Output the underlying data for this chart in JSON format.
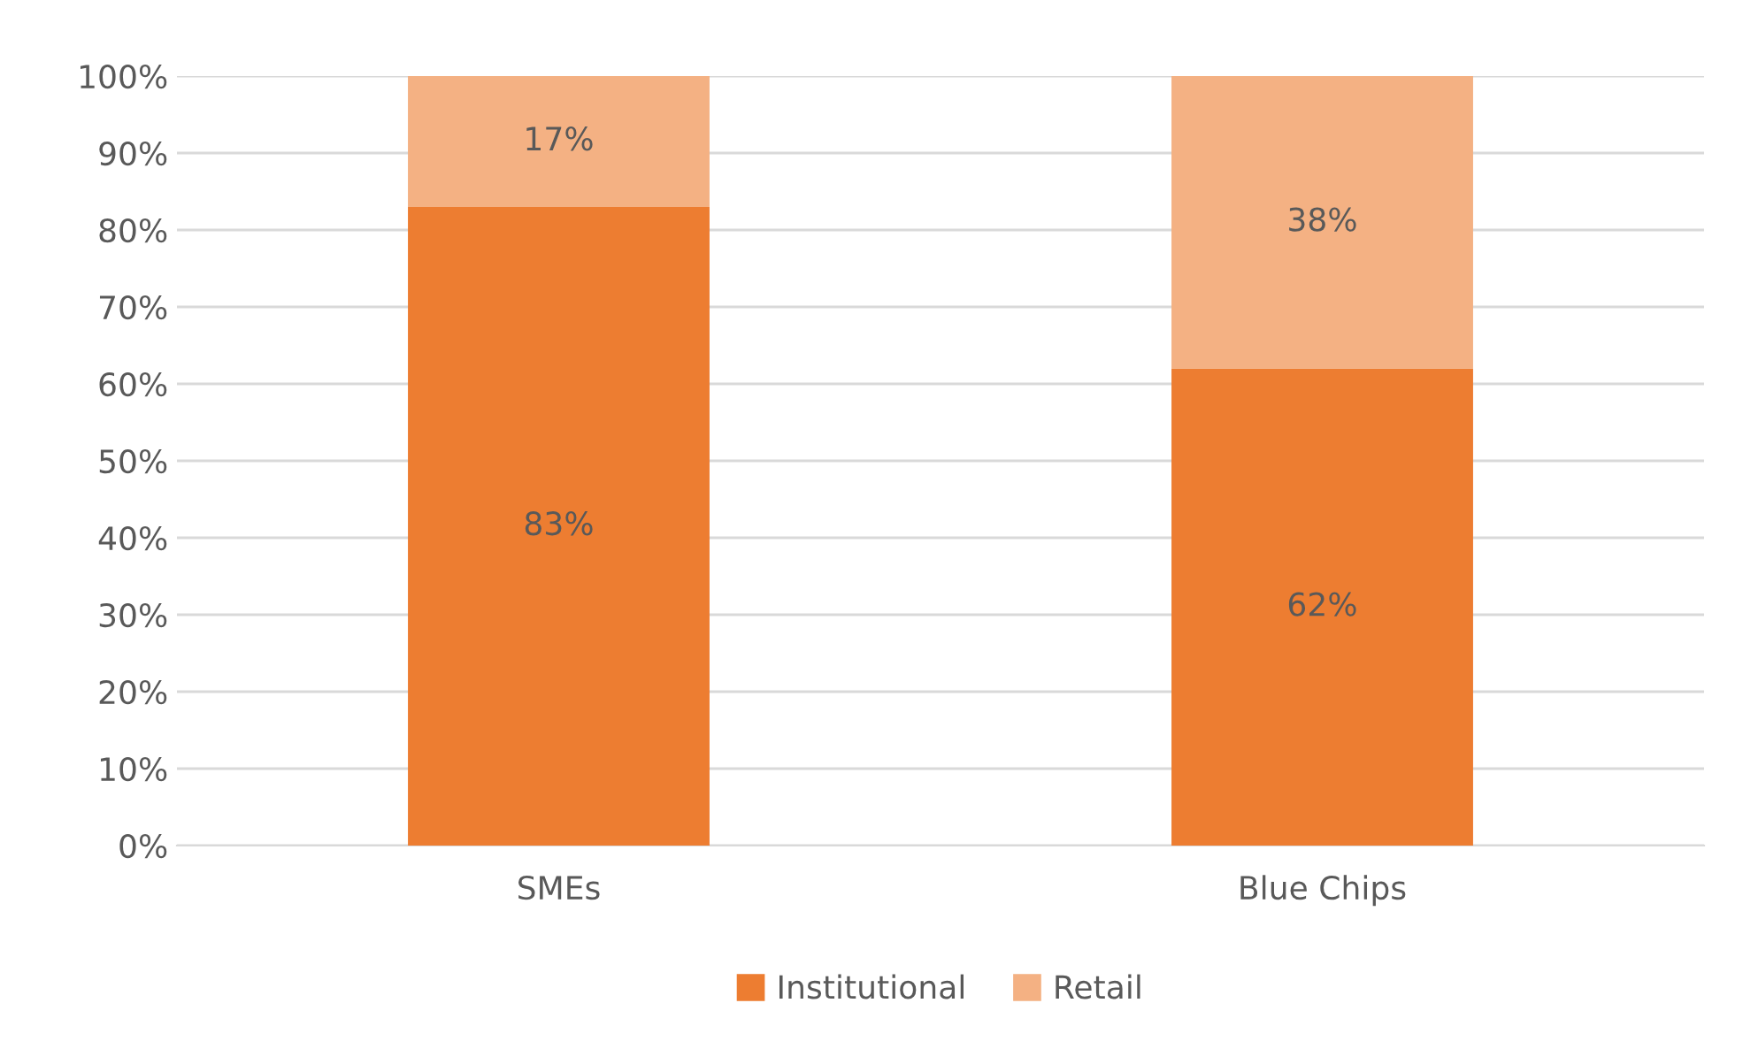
{
  "chart_data": {
    "type": "bar",
    "stacked": true,
    "categories": [
      "SMEs",
      "Blue Chips"
    ],
    "series": [
      {
        "name": "Institutional",
        "color": "#ed7d31",
        "values": [
          83,
          62
        ],
        "value_labels": [
          "83%",
          "62%"
        ]
      },
      {
        "name": "Retail",
        "color": "#f4b183",
        "values": [
          17,
          38
        ],
        "value_labels": [
          "17%",
          "38%"
        ]
      }
    ],
    "ylim": [
      0,
      100
    ],
    "yticks": [
      {
        "value": 0,
        "label": "0%"
      },
      {
        "value": 10,
        "label": "10%"
      },
      {
        "value": 20,
        "label": "20%"
      },
      {
        "value": 30,
        "label": "30%"
      },
      {
        "value": 40,
        "label": "40%"
      },
      {
        "value": 50,
        "label": "50%"
      },
      {
        "value": 60,
        "label": "60%"
      },
      {
        "value": 70,
        "label": "70%"
      },
      {
        "value": 80,
        "label": "80%"
      },
      {
        "value": 90,
        "label": "90%"
      },
      {
        "value": 100,
        "label": "100%"
      }
    ],
    "grid": "y",
    "legend": "bottom"
  }
}
